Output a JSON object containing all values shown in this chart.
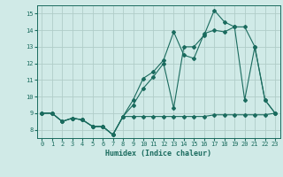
{
  "x": [
    0,
    1,
    2,
    3,
    4,
    5,
    6,
    7,
    8,
    9,
    10,
    11,
    12,
    13,
    14,
    15,
    16,
    17,
    18,
    19,
    20,
    21,
    22,
    23
  ],
  "line1": [
    9.0,
    9.0,
    8.5,
    8.7,
    8.6,
    8.2,
    8.2,
    7.7,
    8.8,
    8.8,
    8.8,
    8.8,
    8.8,
    8.8,
    8.8,
    8.8,
    8.8,
    8.9,
    8.9,
    8.9,
    8.9,
    8.9,
    8.9,
    9.0
  ],
  "line2": [
    9.0,
    9.0,
    8.5,
    8.7,
    8.6,
    8.2,
    8.2,
    7.7,
    8.8,
    9.8,
    11.1,
    11.5,
    12.2,
    13.9,
    12.5,
    12.3,
    13.8,
    14.0,
    13.9,
    14.2,
    9.8,
    13.0,
    9.8,
    9.0
  ],
  "line3": [
    9.0,
    9.0,
    8.5,
    8.7,
    8.6,
    8.2,
    8.2,
    7.7,
    8.8,
    9.5,
    10.5,
    11.2,
    12.0,
    9.3,
    13.0,
    13.0,
    13.7,
    15.2,
    14.5,
    14.2,
    14.2,
    13.0,
    9.8,
    9.0
  ],
  "bg_color": "#d0eae7",
  "line_color": "#1a6b5e",
  "grid_color": "#b0cdc8",
  "xlabel": "Humidex (Indice chaleur)",
  "xlim": [
    -0.5,
    23.5
  ],
  "ylim": [
    7.5,
    15.5
  ],
  "yticks": [
    8,
    9,
    10,
    11,
    12,
    13,
    14,
    15
  ],
  "xticks": [
    0,
    1,
    2,
    3,
    4,
    5,
    6,
    7,
    8,
    9,
    10,
    11,
    12,
    13,
    14,
    15,
    16,
    17,
    18,
    19,
    20,
    21,
    22,
    23
  ]
}
